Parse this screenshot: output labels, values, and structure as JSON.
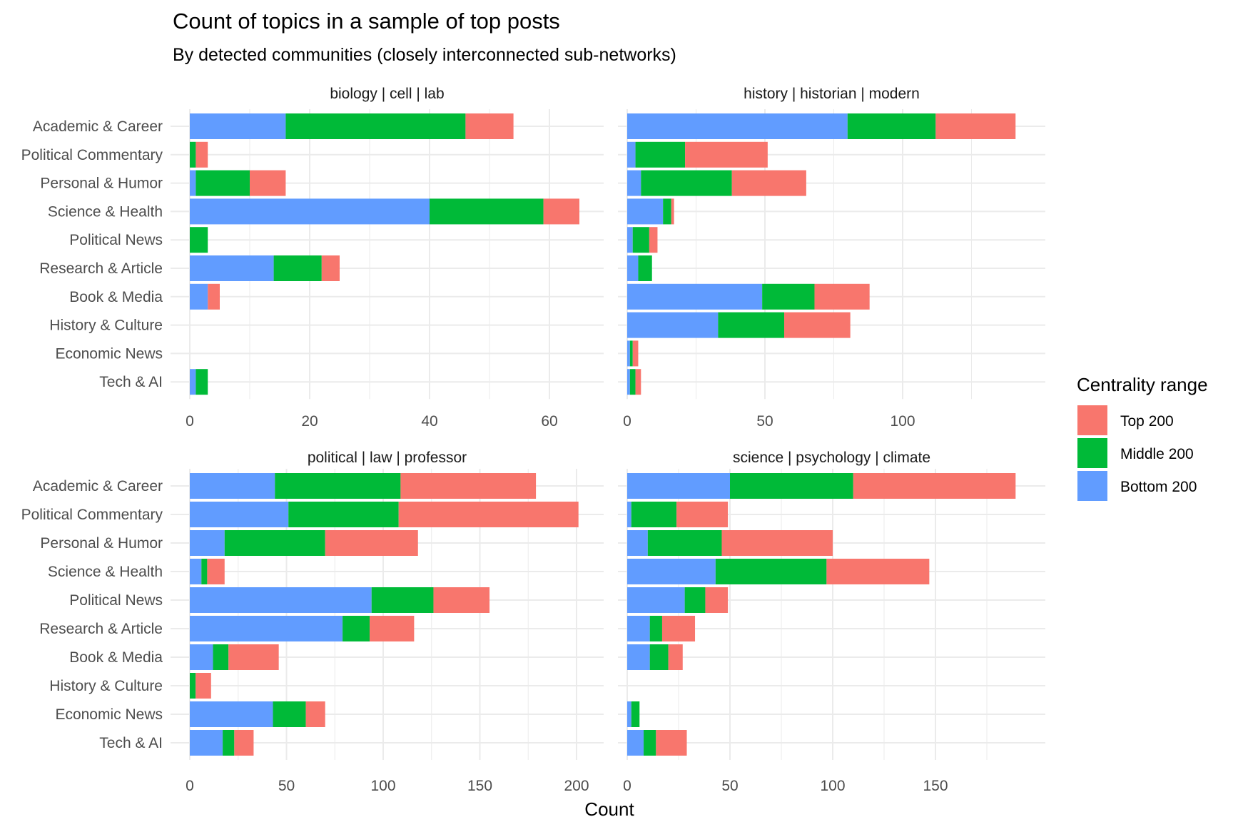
{
  "chart_data": {
    "type": "bar",
    "orientation": "horizontal",
    "stacked": true,
    "title": "Count of topics in a sample of top posts",
    "subtitle": "By detected communities (closely interconnected sub-networks)",
    "xlabel": "Count",
    "ylabel": "",
    "grid": true,
    "legend": {
      "title": "Centrality range",
      "position": "right",
      "entries": [
        {
          "name": "Top 200",
          "color": "#F8766D"
        },
        {
          "name": "Middle 200",
          "color": "#00BA38"
        },
        {
          "name": "Bottom 200",
          "color": "#619CFF"
        }
      ]
    },
    "categories": [
      "Academic & Career",
      "Political Commentary",
      "Personal & Humor",
      "Science & Health",
      "Political News",
      "Research & Article",
      "Book & Media",
      "History & Culture",
      "Economic News",
      "Tech & AI"
    ],
    "stack_order": [
      "Bottom 200",
      "Middle 200",
      "Top 200"
    ],
    "panels": [
      {
        "title": "biology | cell | lab",
        "xlim": [
          0,
          68
        ],
        "xticks": [
          0,
          20,
          40,
          60
        ],
        "series": [
          {
            "name": "Bottom 200",
            "values": [
              16,
              0,
              1,
              40,
              0,
              14,
              3,
              0,
              0,
              1
            ]
          },
          {
            "name": "Middle 200",
            "values": [
              30,
              1,
              9,
              19,
              3,
              8,
              0,
              0,
              0,
              2
            ]
          },
          {
            "name": "Top 200",
            "values": [
              8,
              2,
              6,
              6,
              0,
              3,
              2,
              0,
              0,
              0
            ]
          }
        ]
      },
      {
        "title": "history | historian | modern",
        "xlim": [
          0,
          148
        ],
        "xticks": [
          0,
          50,
          100
        ],
        "series": [
          {
            "name": "Bottom 200",
            "values": [
              80,
              3,
              5,
              13,
              2,
              4,
              49,
              33,
              1,
              1
            ]
          },
          {
            "name": "Middle 200",
            "values": [
              32,
              18,
              33,
              3,
              6,
              5,
              19,
              24,
              1,
              2
            ]
          },
          {
            "name": "Top 200",
            "values": [
              29,
              30,
              27,
              1,
              3,
              0,
              20,
              24,
              2,
              2
            ]
          }
        ]
      },
      {
        "title": "political | law | professor",
        "xlim": [
          0,
          210
        ],
        "xticks": [
          0,
          50,
          100,
          150,
          200
        ],
        "series": [
          {
            "name": "Bottom 200",
            "values": [
              44,
              51,
              18,
              6,
              94,
              79,
              12,
              0,
              43,
              17
            ]
          },
          {
            "name": "Middle 200",
            "values": [
              65,
              57,
              52,
              3,
              32,
              14,
              8,
              3,
              17,
              6
            ]
          },
          {
            "name": "Top 200",
            "values": [
              70,
              93,
              48,
              9,
              29,
              23,
              26,
              8,
              10,
              10
            ]
          }
        ]
      },
      {
        "title": "science | psychology | climate",
        "xlim": [
          0,
          197
        ],
        "xticks": [
          0,
          50,
          100,
          150
        ],
        "series": [
          {
            "name": "Bottom 200",
            "values": [
              50,
              2,
              10,
              43,
              28,
              11,
              11,
              0,
              2,
              8
            ]
          },
          {
            "name": "Middle 200",
            "values": [
              60,
              22,
              36,
              54,
              10,
              6,
              9,
              0,
              4,
              6
            ]
          },
          {
            "name": "Top 200",
            "values": [
              79,
              25,
              54,
              50,
              11,
              16,
              7,
              0,
              0,
              15
            ]
          }
        ]
      }
    ]
  }
}
